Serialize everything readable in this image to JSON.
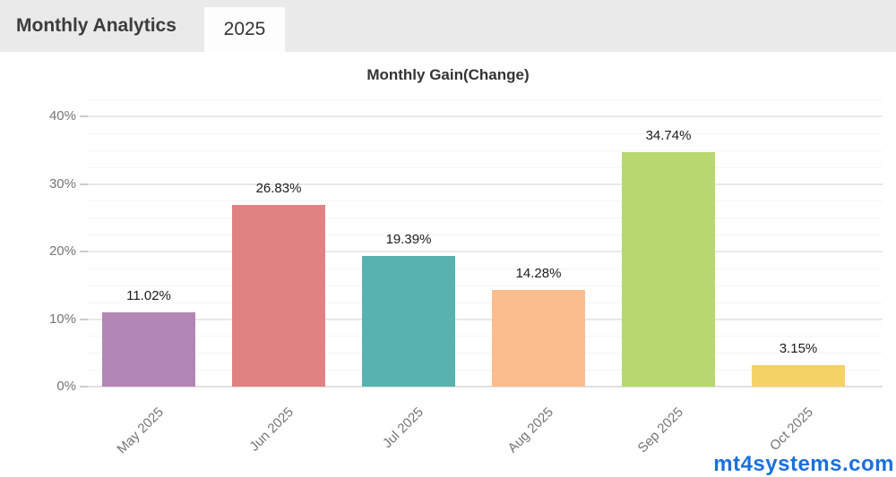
{
  "header": {
    "title": "Monthly Analytics",
    "tab": "2025"
  },
  "watermark": {
    "text": "mt4systems.com",
    "color": "#1b6fdb"
  },
  "chart_data": {
    "type": "bar",
    "title": "Monthly Gain(Change)",
    "categories": [
      "May 2025",
      "Jun 2025",
      "Jul 2025",
      "Aug 2025",
      "Sep 2025",
      "Oct 2025"
    ],
    "values": [
      11.02,
      26.83,
      19.39,
      14.28,
      34.74,
      3.15
    ],
    "value_labels": [
      "11.02%",
      "26.83%",
      "19.39%",
      "14.28%",
      "34.74%",
      "3.15%"
    ],
    "bar_colors": [
      "#b287b5",
      "#e08282",
      "#58b2ad",
      "#fcbd8e",
      "#b6d86f",
      "#f4d266"
    ],
    "xlabel": "",
    "ylabel": "",
    "ylim": [
      0,
      42.5
    ],
    "yticks": [
      0,
      10,
      20,
      30,
      40
    ],
    "ytick_labels": [
      "0%",
      "10%",
      "20%",
      "30%",
      "40%"
    ],
    "minor_grid_step": 2.5,
    "grid": "on",
    "legend": "none",
    "axis_label_color": "#757575",
    "value_label_color": "#1a1a1a"
  }
}
